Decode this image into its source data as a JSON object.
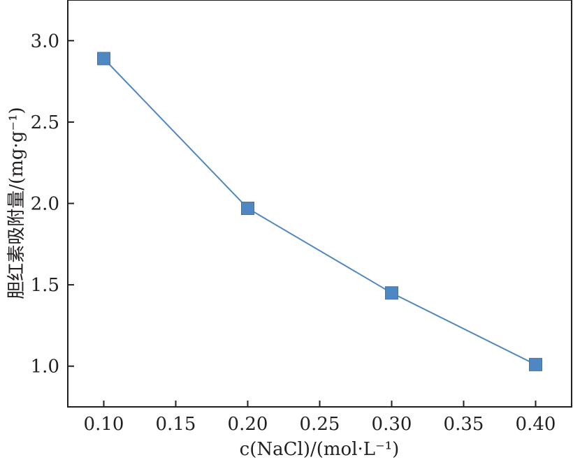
{
  "chart_data": {
    "type": "line",
    "title": "",
    "xlabel": "c(NaCl)/(mol·L⁻¹)",
    "ylabel": "胆红素吸附量/(mg·g⁻¹)",
    "xlim": [
      0.075,
      0.425
    ],
    "ylim": [
      0.75,
      3.25
    ],
    "x_ticks": [
      0.1,
      0.15,
      0.2,
      0.25,
      0.3,
      0.35,
      0.4
    ],
    "x_tick_labels": [
      "0.10",
      "0.15",
      "0.20",
      "0.25",
      "0.30",
      "0.35",
      "0.40"
    ],
    "y_ticks": [
      1.0,
      1.5,
      2.0,
      2.5,
      3.0
    ],
    "y_tick_labels": [
      "1.0",
      "1.5",
      "2.0",
      "2.5",
      "3.0"
    ],
    "grid": false,
    "series": [
      {
        "x": [
          0.1,
          0.2,
          0.3,
          0.4
        ],
        "values": [
          2.89,
          1.97,
          1.45,
          1.01
        ],
        "color": "#4f87c2",
        "marker": "square"
      }
    ]
  }
}
